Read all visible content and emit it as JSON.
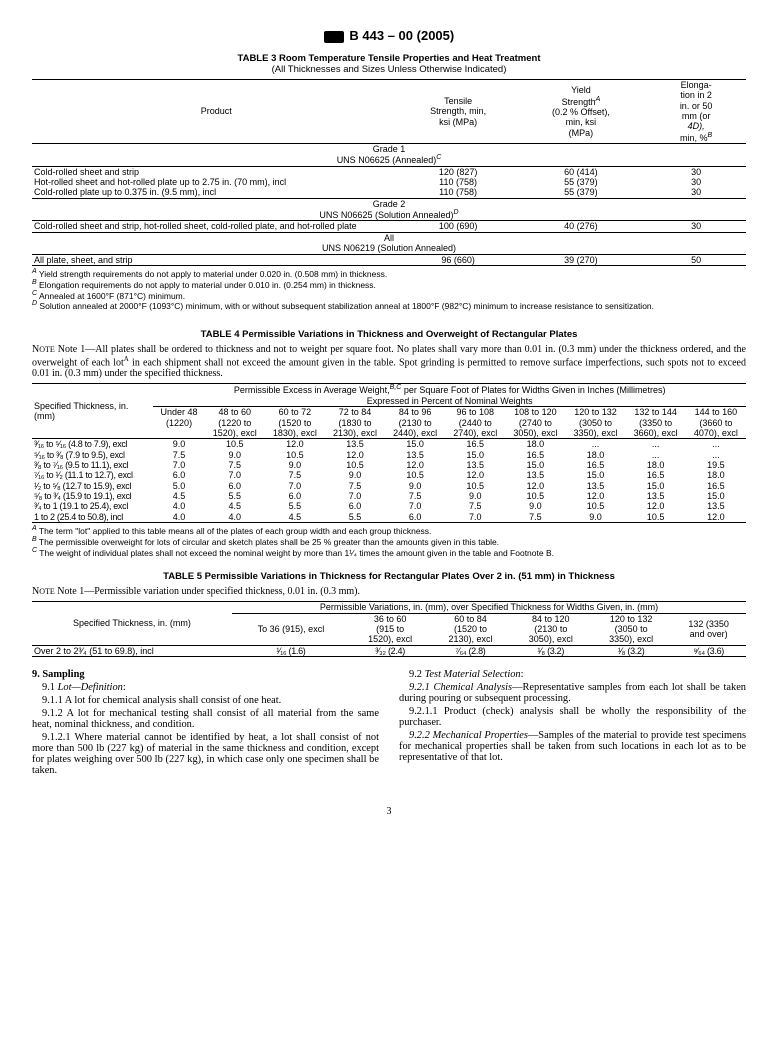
{
  "doc": {
    "standard": "B 443 – 00",
    "year": "(2005)",
    "page": "3"
  },
  "t3": {
    "title": "TABLE 3  Room Temperature Tensile Properties and Heat Treatment",
    "subtitle": "(All Thicknesses and Sizes Unless Otherwise Indicated)",
    "h_product": "Product",
    "h_tensile_l1": "Tensile",
    "h_tensile_l2": "Strength, min,",
    "h_tensile_l3": "ksi (MPa)",
    "h_yield_l1": "Yield",
    "h_yield_l2": "Strength",
    "h_yield_l3": "(0.2 % Offset),",
    "h_yield_l4": "min, ksi",
    "h_yield_l5": "(MPa)",
    "h_elong_l1": "Elonga-",
    "h_elong_l2": "tion in 2",
    "h_elong_l3": "in. or 50",
    "h_elong_l4": "mm (or",
    "h_elong_l5": "4D),",
    "h_elong_l6": "min, %",
    "g1_l1": "Grade 1",
    "g1_l2": "UNS N06625 (Annealed)",
    "r1c1": "Cold-rolled sheet and strip",
    "r1c2": "120 (827)",
    "r1c3": "60 (414)",
    "r1c4": "30",
    "r2c1": "Hot-rolled sheet and hot-rolled plate up to 2.75 in. (70 mm), incl",
    "r2c2": "110 (758)",
    "r2c3": "55 (379)",
    "r2c4": "30",
    "r3c1": "Cold-rolled plate up to 0.375 in. (9.5 mm), incl",
    "r3c2": "110 (758)",
    "r3c3": "55 (379)",
    "r3c4": "30",
    "g2_l1": "Grade 2",
    "g2_l2": "UNS N06625 (Solution Annealed)",
    "r4c1": "Cold-rolled sheet and strip, hot-rolled sheet, cold-rolled plate, and hot-rolled plate",
    "r4c2": "100 (690)",
    "r4c3": "40 (276)",
    "r4c4": "30",
    "g3_l1": "All",
    "g3_l2": "UNS N06219 (Solution Annealed)",
    "r5c1": "All plate, sheet, and strip",
    "r5c2": "96 (660)",
    "r5c3": "39 (270)",
    "r5c4": "50",
    "fnA": " Yield strength requirements do not apply to material under 0.020 in. (0.508 mm) in thickness.",
    "fnB": " Elongation requirements do not apply to material under 0.010 in. (0.254 mm) in thickness.",
    "fnC": " Annealed at 1600°F (871°C) minimum.",
    "fnD": " Solution annealed at 2000°F (1093°C) minimum, with or without subsequent stabilization anneal at 1800°F (982°C) minimum to increase resistance to sensitization."
  },
  "t4": {
    "title": "TABLE 4  Permissible Variations in Thickness and Overweight of Rectangular Plates",
    "note1": "Note 1—All plates shall be ordered to thickness and not to weight per square foot. No plates shall vary more than 0.01 in. (0.3 mm) under the thickness ordered, and the overweight of each lot",
    "note1b": " in each shipment shall not exceed the amount given in the table. Spot grinding is permitted to remove surface imperfections, such spots not to exceed 0.01 in. (0.3 mm) under the specified thickness.",
    "span_l1": "Permissible Excess in Average Weight,",
    "span_l1b": " per Square Foot of Plates for Widths Given in Inches (Millimetres)",
    "span_l2": "Expressed in Percent of Nominal Weights",
    "h_spec_l1": "Specified Thickness, in.",
    "h_spec_l2": "(mm)",
    "hc1_l1": "Under 48",
    "hc1_l2": "(1220)",
    "hc2_l1": "48 to 60",
    "hc2_l2": "(1220 to",
    "hc2_l3": "1520), excl",
    "hc3_l1": "60 to 72",
    "hc3_l2": "(1520 to",
    "hc3_l3": "1830), excl",
    "hc4_l1": "72 to 84",
    "hc4_l2": "(1830 to",
    "hc4_l3": "2130), excl",
    "hc5_l1": "84 to 96",
    "hc5_l2": "(2130 to",
    "hc5_l3": "2440), excl",
    "hc6_l1": "96 to 108",
    "hc6_l2": "(2440 to",
    "hc6_l3": "2740), excl",
    "hc7_l1": "108 to 120",
    "hc7_l2": "(2740 to",
    "hc7_l3": "3050), excl",
    "hc8_l1": "120 to 132",
    "hc8_l2": "(3050 to",
    "hc8_l3": "3350), excl",
    "hc9_l1": "132 to 144",
    "hc9_l2": "(3350 to",
    "hc9_l3": "3660), excl",
    "hc10_l1": "144 to 160",
    "hc10_l2": "(3660 to",
    "hc10_l3": "4070), excl",
    "rows": [
      [
        "³⁄₁₆ to ⁵⁄₁₆  (4.8 to 7.9), excl",
        "9.0",
        "10.5",
        "12.0",
        "13.5",
        "15.0",
        "16.5",
        "18.0",
        "...",
        "...",
        "..."
      ],
      [
        "⁵⁄₁₆ to ³⁄₈  (7.9 to 9.5), excl",
        "7.5",
        "9.0",
        "10.5",
        "12.0",
        "13.5",
        "15.0",
        "16.5",
        "18.0",
        "...",
        "..."
      ],
      [
        "³⁄₈ to ⁷⁄₁₆  (9.5 to 11.1), excl",
        "7.0",
        "7.5",
        "9.0",
        "10.5",
        "12.0",
        "13.5",
        "15.0",
        "16.5",
        "18.0",
        "19.5"
      ],
      [
        "⁷⁄₁₆ to ¹⁄₂  (11.1 to 12.7), excl",
        "6.0",
        "7.0",
        "7.5",
        "9.0",
        "10.5",
        "12.0",
        "13.5",
        "15.0",
        "16.5",
        "18.0"
      ],
      [
        "¹⁄₂ to ⁵⁄₈  (12.7 to 15.9), excl",
        "5.0",
        "6.0",
        "7.0",
        "7.5",
        "9.0",
        "10.5",
        "12.0",
        "13.5",
        "15.0",
        "16.5"
      ],
      [
        "⁵⁄₈ to ³⁄₄  (15.9 to 19.1), excl",
        "4.5",
        "5.5",
        "6.0",
        "7.0",
        "7.5",
        "9.0",
        "10.5",
        "12.0",
        "13.5",
        "15.0"
      ],
      [
        "³⁄₄ to 1 (19.1 to 25.4), excl",
        "4.0",
        "4.5",
        "5.5",
        "6.0",
        "7.0",
        "7.5",
        "9.0",
        "10.5",
        "12.0",
        "13.5"
      ],
      [
        "1 to 2 (25.4 to 50.8), incl",
        "4.0",
        "4.0",
        "4.5",
        "5.5",
        "6.0",
        "7.0",
        "7.5",
        "9.0",
        "10.5",
        "12.0"
      ]
    ],
    "fnA": " The term \"lot\" applied to this table means all of the plates of each group width and each group thickness.",
    "fnB": " The permissible overweight for lots of circular and sketch plates shall be 25 % greater than the amounts given in this table.",
    "fnC": " The weight of individual plates shall not exceed the nominal weight by more than 1¹⁄₄ times the amount given in the table and Footnote B."
  },
  "t5": {
    "title": "TABLE 5  Permissible Variations in Thickness for Rectangular Plates Over 2 in. (51 mm) in Thickness",
    "note1": "Note 1—Permissible variation under specified thickness, 0.01 in. (0.3 mm).",
    "span": "Permissible Variations, in. (mm), over Specified Thickness for Widths Given, in. (mm)",
    "h_spec": "Specified Thickness, in. (mm)",
    "hc1": "To 36 (915), excl",
    "hc2_l1": "36 to 60",
    "hc2_l2": "(915 to",
    "hc2_l3": "1520), excl",
    "hc3_l1": "60 to 84",
    "hc3_l2": "(1520 to",
    "hc3_l3": "2130), excl",
    "hc4_l1": "84 to 120",
    "hc4_l2": "(2130 to",
    "hc4_l3": "3050), excl",
    "hc5_l1": "120 to 132",
    "hc5_l2": "(3050 to",
    "hc5_l3": "3350), excl",
    "hc6_l1": "132 (3350",
    "hc6_l2": "and over)",
    "r1c1": "Over 2 to 2³⁄₄ (51 to 69.8), incl",
    "r1c2": "¹⁄₁₆ (1.6)",
    "r1c3": "³⁄₃₂ (2.4)",
    "r1c4": "⁷⁄₆₄ (2.8)",
    "r1c5": "¹⁄₈ (3.2)",
    "r1c6": "¹⁄₈ (3.2)",
    "r1c7": "⁹⁄₆₄  (3.6)"
  },
  "body": {
    "s9": "9. Sampling",
    "s91": "9.1 Lot—Definition:",
    "s911": "9.1.1 A lot for chemical analysis shall consist of one heat.",
    "s912": "9.1.2 A lot for mechanical testing shall consist of all material from the same heat, nominal thickness, and condition.",
    "s9121": "9.1.2.1 Where material cannot be identified by heat, a lot shall consist of not more than 500 lb (227 kg) of material in the same thickness and condition, except for plates weighing over 500 lb (227 kg), in which case only one specimen shall be taken.",
    "s92": "9.2 Test Material Selection:",
    "s921a": "9.2.1 Chemical Analysis",
    "s921b": "—Representative samples from each lot shall be taken during pouring or subsequent processing.",
    "s9211": "9.2.1.1 Product (check) analysis shall be wholly the responsibility of the purchaser.",
    "s922a": "9.2.2 Mechanical Properties",
    "s922b": "—Samples of the material to provide test specimens for mechanical properties shall be taken from such locations in each lot as to be representative of that lot."
  }
}
